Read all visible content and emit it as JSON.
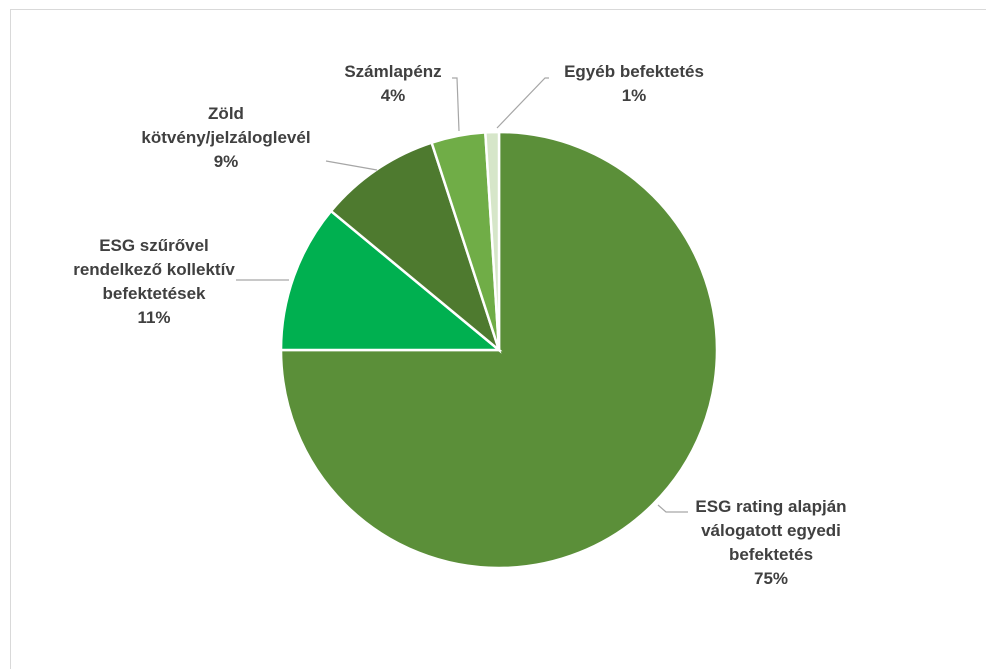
{
  "chart_data": {
    "type": "pie",
    "title": "",
    "slices": [
      {
        "label": [
          "ESG rating alapján",
          "válogatott egyedi",
          "befektetés"
        ],
        "value": 75,
        "value_label": "75%",
        "color": "#5b8f39"
      },
      {
        "label": [
          "ESG szűrővel",
          "rendelkező kollektív",
          "befektetések"
        ],
        "value": 11,
        "value_label": "11%",
        "color": "#00b050"
      },
      {
        "label": [
          "Zöld",
          "kötvény/jelzáloglevél"
        ],
        "value": 9,
        "value_label": "9%",
        "color": "#4e7a2f"
      },
      {
        "label": [
          "Számlapénz"
        ],
        "value": 4,
        "value_label": "4%",
        "color": "#70ad47"
      },
      {
        "label": [
          "Egyéb befektetés"
        ],
        "value": 1,
        "value_label": "1%",
        "color": "#d6e6c9"
      }
    ]
  }
}
